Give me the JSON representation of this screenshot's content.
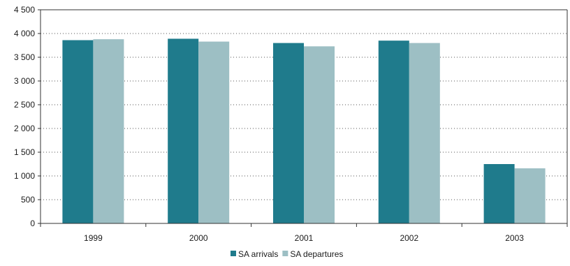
{
  "chart_data": {
    "type": "bar",
    "categories": [
      "1999",
      "2000",
      "2001",
      "2002",
      "2003"
    ],
    "series": [
      {
        "name": "SA arrivals",
        "values": [
          3860,
          3890,
          3800,
          3850,
          1250
        ],
        "color": "#1f7b8c"
      },
      {
        "name": "SA departures",
        "values": [
          3880,
          3830,
          3730,
          3800,
          1160
        ],
        "color": "#9dbfc4"
      }
    ],
    "y_ticks": [
      "0",
      "500",
      "1 000",
      "1 500",
      "2 000",
      "2 500",
      "3 000",
      "3 500",
      "4 000",
      "4 500"
    ],
    "ylim": [
      0,
      4500
    ],
    "ytick_step": 500,
    "grid": "horizontal dotted",
    "legend": "bottom-center",
    "title": "",
    "xlabel": "",
    "ylabel": ""
  }
}
